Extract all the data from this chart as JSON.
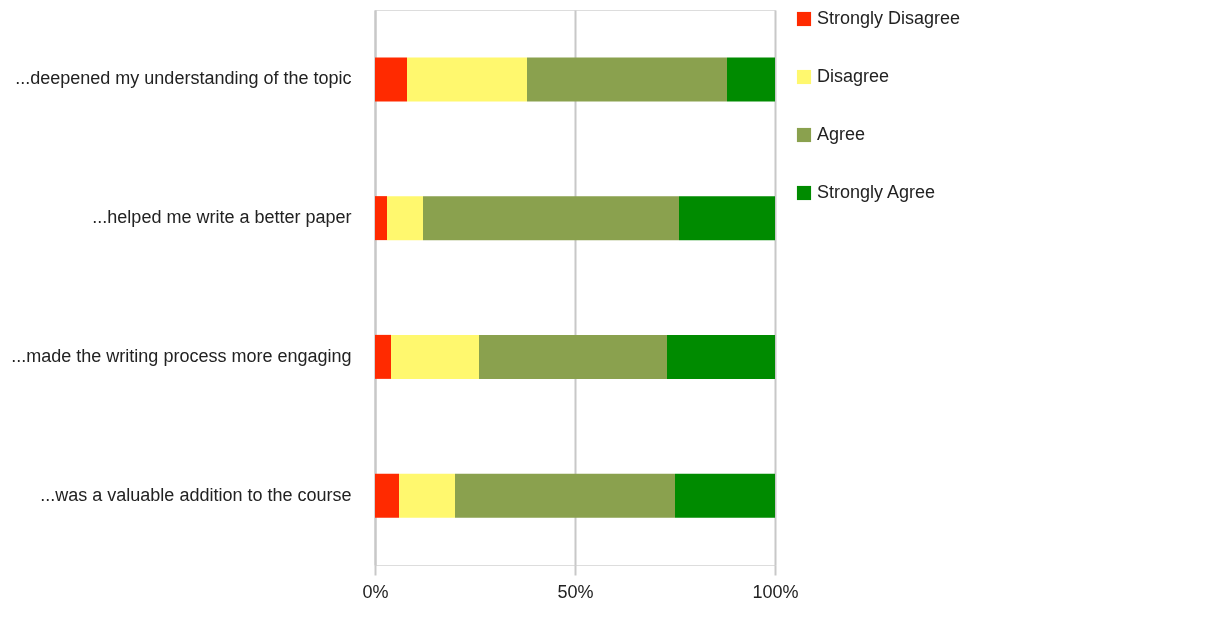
{
  "chart_data": {
    "type": "bar",
    "orientation": "horizontal",
    "stacked": true,
    "categories": [
      "...deepened my understanding of the topic",
      "...helped me write a better paper",
      "...made the writing process more engaging",
      "...was a valuable addition to the course"
    ],
    "series": [
      {
        "name": "Strongly Disagree",
        "color": "#ff2a00",
        "values": [
          0.08,
          0.03,
          0.04,
          0.06
        ]
      },
      {
        "name": "Disagree",
        "color": "#fff86e",
        "values": [
          0.3,
          0.09,
          0.22,
          0.14
        ]
      },
      {
        "name": "Agree",
        "color": "#8aa14e",
        "values": [
          0.5,
          0.64,
          0.47,
          0.55
        ]
      },
      {
        "name": "Strongly Agree",
        "color": "#008b00",
        "values": [
          0.12,
          0.24,
          0.27,
          0.25
        ]
      }
    ],
    "xlim": [
      0,
      1
    ],
    "xticks": [
      {
        "value": 0,
        "label": "0%"
      },
      {
        "value": 0.5,
        "label": "50%"
      },
      {
        "value": 1,
        "label": "100%"
      }
    ],
    "grid": "x",
    "legend": "right"
  }
}
